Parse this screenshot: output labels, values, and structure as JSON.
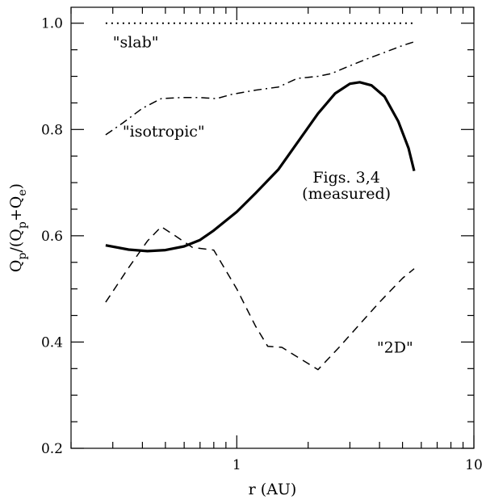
{
  "chart_data": {
    "type": "line",
    "title": "",
    "xlabel": "r (AU)",
    "ylabel_parts": {
      "q1": "Q",
      "sub1": "p",
      "mid": "/(Q",
      "sub2": "p",
      "plus": "+Q",
      "sub3": "e",
      "close": ")"
    },
    "xscale": "log",
    "xlim": [
      0.2,
      10
    ],
    "ylim": [
      0.2,
      1.03
    ],
    "x_major_ticks": [
      1,
      10
    ],
    "x_minor_ticks": [
      0.2,
      0.3,
      0.4,
      0.5,
      0.6,
      0.7,
      0.8,
      0.9,
      2,
      3,
      4,
      5,
      6,
      7,
      8,
      9
    ],
    "y_major_ticks": [
      0.2,
      0.4,
      0.6,
      0.8,
      1.0
    ],
    "y_minor_ticks": [
      0.25,
      0.3,
      0.35,
      0.45,
      0.5,
      0.55,
      0.65,
      0.7,
      0.75,
      0.85,
      0.9,
      0.95
    ],
    "x_tick_labels": [
      {
        "x": 1,
        "text": "1"
      },
      {
        "x": 10,
        "text": "10"
      }
    ],
    "y_tick_labels": [
      {
        "y": 0.2,
        "text": "0.2"
      },
      {
        "y": 0.4,
        "text": "0.4"
      },
      {
        "y": 0.6,
        "text": "0.6"
      },
      {
        "y": 0.8,
        "text": "0.8"
      },
      {
        "y": 1.0,
        "text": "1.0"
      }
    ],
    "series": [
      {
        "name": "slab",
        "style": "dotted",
        "width": 2,
        "points": [
          [
            0.28,
            1.0
          ],
          [
            5.6,
            1.0
          ]
        ]
      },
      {
        "name": "isotropic",
        "style": "dashdot",
        "width": 1.5,
        "points": [
          [
            0.28,
            0.79
          ],
          [
            0.33,
            0.812
          ],
          [
            0.4,
            0.84
          ],
          [
            0.48,
            0.858
          ],
          [
            0.58,
            0.86
          ],
          [
            0.7,
            0.86
          ],
          [
            0.82,
            0.858
          ],
          [
            0.95,
            0.866
          ],
          [
            1.2,
            0.874
          ],
          [
            1.5,
            0.88
          ],
          [
            1.8,
            0.896
          ],
          [
            2.2,
            0.9
          ],
          [
            2.5,
            0.905
          ],
          [
            3.0,
            0.92
          ],
          [
            3.5,
            0.932
          ],
          [
            4.2,
            0.945
          ],
          [
            5.0,
            0.958
          ],
          [
            5.6,
            0.965
          ]
        ]
      },
      {
        "name": "measured",
        "style": "solid",
        "width": 3.2,
        "points": [
          [
            0.28,
            0.582
          ],
          [
            0.35,
            0.574
          ],
          [
            0.42,
            0.571
          ],
          [
            0.5,
            0.573
          ],
          [
            0.6,
            0.58
          ],
          [
            0.7,
            0.592
          ],
          [
            0.8,
            0.61
          ],
          [
            1.0,
            0.645
          ],
          [
            1.2,
            0.68
          ],
          [
            1.5,
            0.725
          ],
          [
            1.8,
            0.775
          ],
          [
            2.2,
            0.83
          ],
          [
            2.6,
            0.868
          ],
          [
            3.0,
            0.886
          ],
          [
            3.3,
            0.889
          ],
          [
            3.7,
            0.883
          ],
          [
            4.2,
            0.862
          ],
          [
            4.8,
            0.815
          ],
          [
            5.3,
            0.765
          ],
          [
            5.6,
            0.722
          ]
        ]
      },
      {
        "name": "2D",
        "style": "dashed",
        "width": 1.5,
        "points": [
          [
            0.28,
            0.475
          ],
          [
            0.35,
            0.54
          ],
          [
            0.42,
            0.59
          ],
          [
            0.48,
            0.617
          ],
          [
            0.55,
            0.6
          ],
          [
            0.65,
            0.578
          ],
          [
            0.8,
            0.573
          ],
          [
            1.0,
            0.5
          ],
          [
            1.2,
            0.43
          ],
          [
            1.35,
            0.392
          ],
          [
            1.55,
            0.39
          ],
          [
            1.8,
            0.372
          ],
          [
            2.2,
            0.348
          ],
          [
            2.7,
            0.39
          ],
          [
            3.2,
            0.427
          ],
          [
            4.0,
            0.475
          ],
          [
            5.0,
            0.52
          ],
          [
            5.6,
            0.538
          ]
        ]
      }
    ],
    "annotations": [
      {
        "name": "annotation-slab",
        "text": "\"slab\"",
        "x": 0.3,
        "y": 0.955,
        "anchor": "start"
      },
      {
        "name": "annotation-isotropic",
        "text": "\"isotropic\"",
        "x": 0.33,
        "y": 0.787,
        "anchor": "start"
      },
      {
        "name": "annotation-figs",
        "text": "Figs. 3,4",
        "x": 2.9,
        "y": 0.7,
        "anchor": "middle"
      },
      {
        "name": "annotation-measured",
        "text": "(measured)",
        "x": 2.9,
        "y": 0.67,
        "anchor": "middle"
      },
      {
        "name": "annotation-2d",
        "text": "\"2D\"",
        "x": 3.9,
        "y": 0.38,
        "anchor": "start"
      }
    ]
  }
}
